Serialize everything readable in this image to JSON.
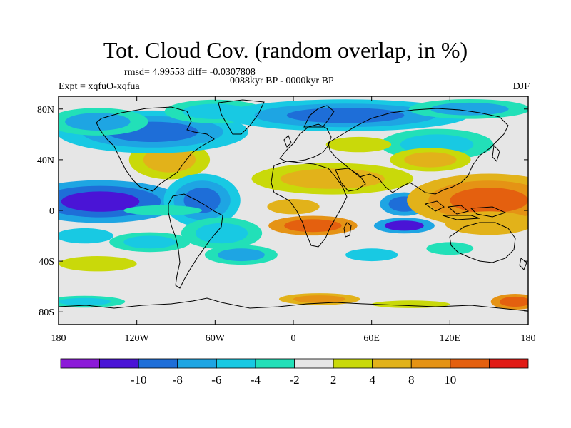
{
  "title": "Tot. Cloud Cov. (random overlap, in %)",
  "stats": "rmsd= 4.99553 diff= -0.0307808",
  "period": "0088kyr BP - 0000kyr BP",
  "experiment": "Expt = xqfuO-xqfua",
  "season": "DJF",
  "map": {
    "lon_range": [
      -180,
      180
    ],
    "lat_range": [
      -90,
      90
    ],
    "y_ticks": [
      {
        "lat": 80,
        "label": "80N"
      },
      {
        "lat": 40,
        "label": "40N"
      },
      {
        "lat": 0,
        "label": "0"
      },
      {
        "lat": -40,
        "label": "40S"
      },
      {
        "lat": -80,
        "label": "80S"
      }
    ],
    "x_ticks": [
      {
        "lon": -180,
        "label": "180"
      },
      {
        "lon": -120,
        "label": "120W"
      },
      {
        "lon": -60,
        "label": "60W"
      },
      {
        "lon": 0,
        "label": "0"
      },
      {
        "lon": 60,
        "label": "60E"
      },
      {
        "lon": 120,
        "label": "120E"
      },
      {
        "lon": 180,
        "label": "180"
      }
    ],
    "background_color": "#e6e6e6"
  },
  "colorbar": {
    "colors": [
      "#8c1ad8",
      "#4a14d6",
      "#1e6ed8",
      "#1ea5e3",
      "#18c9e3",
      "#22e0b8",
      "#e6e6e6",
      "#c9d90a",
      "#e2b21a",
      "#e59315",
      "#e4600f",
      "#e11b16"
    ],
    "labels": [
      "-10",
      "-8",
      "-6",
      "-4",
      "-2",
      "2",
      "4",
      "8",
      "10"
    ]
  },
  "anomalies": [
    {
      "lon": -148,
      "lat": 7,
      "rx": 30,
      "ry": 8,
      "level": -11,
      "ring": 2
    },
    {
      "lon": -160,
      "lat": -20,
      "rx": 22,
      "ry": 6,
      "level": -4,
      "ring": 1
    },
    {
      "lon": -150,
      "lat": -42,
      "rx": 30,
      "ry": 6,
      "level": 3,
      "ring": 0
    },
    {
      "lon": -95,
      "lat": 40,
      "rx": 20,
      "ry": 10,
      "level": 5,
      "ring": 1
    },
    {
      "lon": -108,
      "lat": 62,
      "rx": 35,
      "ry": 8,
      "level": -9,
      "ring": 2
    },
    {
      "lon": -150,
      "lat": 70,
      "rx": 25,
      "ry": 7,
      "level": -6,
      "ring": 1
    },
    {
      "lon": -60,
      "lat": 78,
      "rx": 25,
      "ry": 6,
      "level": -5,
      "ring": 1
    },
    {
      "lon": -70,
      "lat": 8,
      "rx": 14,
      "ry": 10,
      "level": -9,
      "ring": 2
    },
    {
      "lon": -110,
      "lat": -25,
      "rx": 20,
      "ry": 5,
      "level": -5,
      "ring": 1
    },
    {
      "lon": -55,
      "lat": -18,
      "rx": 20,
      "ry": 8,
      "level": -5,
      "ring": 1
    },
    {
      "lon": -40,
      "lat": -35,
      "rx": 18,
      "ry": 5,
      "level": -6,
      "ring": 1
    },
    {
      "lon": 15,
      "lat": -12,
      "rx": 22,
      "ry": 5,
      "level": 11,
      "ring": 1
    },
    {
      "lon": 0,
      "lat": 3,
      "rx": 20,
      "ry": 6,
      "level": 5,
      "ring": 0
    },
    {
      "lon": 30,
      "lat": 25,
      "rx": 40,
      "ry": 8,
      "level": 6,
      "ring": 1
    },
    {
      "lon": 85,
      "lat": 5,
      "rx": 12,
      "ry": 6,
      "level": -9,
      "ring": 1
    },
    {
      "lon": 85,
      "lat": -12,
      "rx": 15,
      "ry": 4,
      "level": -10,
      "ring": 1
    },
    {
      "lon": 150,
      "lat": 8,
      "rx": 30,
      "ry": 10,
      "level": 12,
      "ring": 2
    },
    {
      "lon": 150,
      "lat": -10,
      "rx": 22,
      "ry": 6,
      "level": 8,
      "ring": 1
    },
    {
      "lon": 110,
      "lat": 52,
      "rx": 28,
      "ry": 8,
      "level": -5,
      "ring": 1
    },
    {
      "lon": 50,
      "lat": 52,
      "rx": 25,
      "ry": 6,
      "level": 3,
      "ring": 0
    },
    {
      "lon": 40,
      "lat": 75,
      "rx": 45,
      "ry": 6,
      "level": -9,
      "ring": 2
    },
    {
      "lon": 135,
      "lat": 80,
      "rx": 30,
      "ry": 5,
      "level": -6,
      "ring": 1
    },
    {
      "lon": 105,
      "lat": 40,
      "rx": 20,
      "ry": 6,
      "level": 6,
      "ring": 1
    },
    {
      "lon": -100,
      "lat": 0,
      "rx": 30,
      "ry": 4,
      "level": -3,
      "ring": 0
    },
    {
      "lon": 60,
      "lat": -35,
      "rx": 20,
      "ry": 5,
      "level": -4,
      "ring": 1
    },
    {
      "lon": 120,
      "lat": -30,
      "rx": 18,
      "ry": 5,
      "level": -3,
      "ring": 0
    },
    {
      "lon": 20,
      "lat": -70,
      "rx": 20,
      "ry": 3,
      "level": 10,
      "ring": 1
    },
    {
      "lon": 170,
      "lat": -72,
      "rx": 12,
      "ry": 4,
      "level": 11,
      "ring": 1
    },
    {
      "lon": -160,
      "lat": -72,
      "rx": 20,
      "ry": 3,
      "level": -5,
      "ring": 1
    },
    {
      "lon": 90,
      "lat": -74,
      "rx": 30,
      "ry": 3,
      "level": 4,
      "ring": 0
    }
  ]
}
